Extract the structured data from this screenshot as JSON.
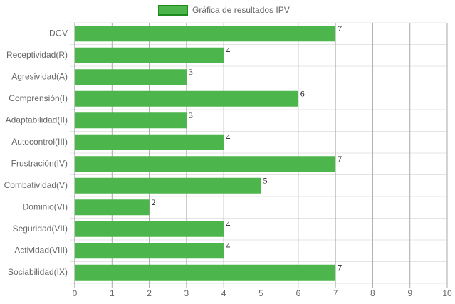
{
  "chart_data": {
    "type": "hbar",
    "categories": [
      "DGV",
      "Receptividad(R)",
      "Agresividad(A)",
      "Comprensión(I)",
      "Adaptabilidad(II)",
      "Autocontrol(III)",
      "Frustración(IV)",
      "Combatividad(V)",
      "Dominio(VI)",
      "Seguridad(VII)",
      "Actividad(VIII)",
      "Sociabilidad(IX)"
    ],
    "series": [
      {
        "name": "Gráfica de resultados IPV",
        "color": "#4cb54c",
        "border_color": "#1e8b1e",
        "values": [
          7,
          4,
          3,
          6,
          3,
          4,
          7,
          5,
          2,
          4,
          4,
          7
        ]
      }
    ],
    "xlim": [
      0,
      10
    ],
    "xticks": [
      0,
      1,
      2,
      3,
      4,
      5,
      6,
      7,
      8,
      9,
      10
    ],
    "grid": true,
    "legend": "top"
  }
}
